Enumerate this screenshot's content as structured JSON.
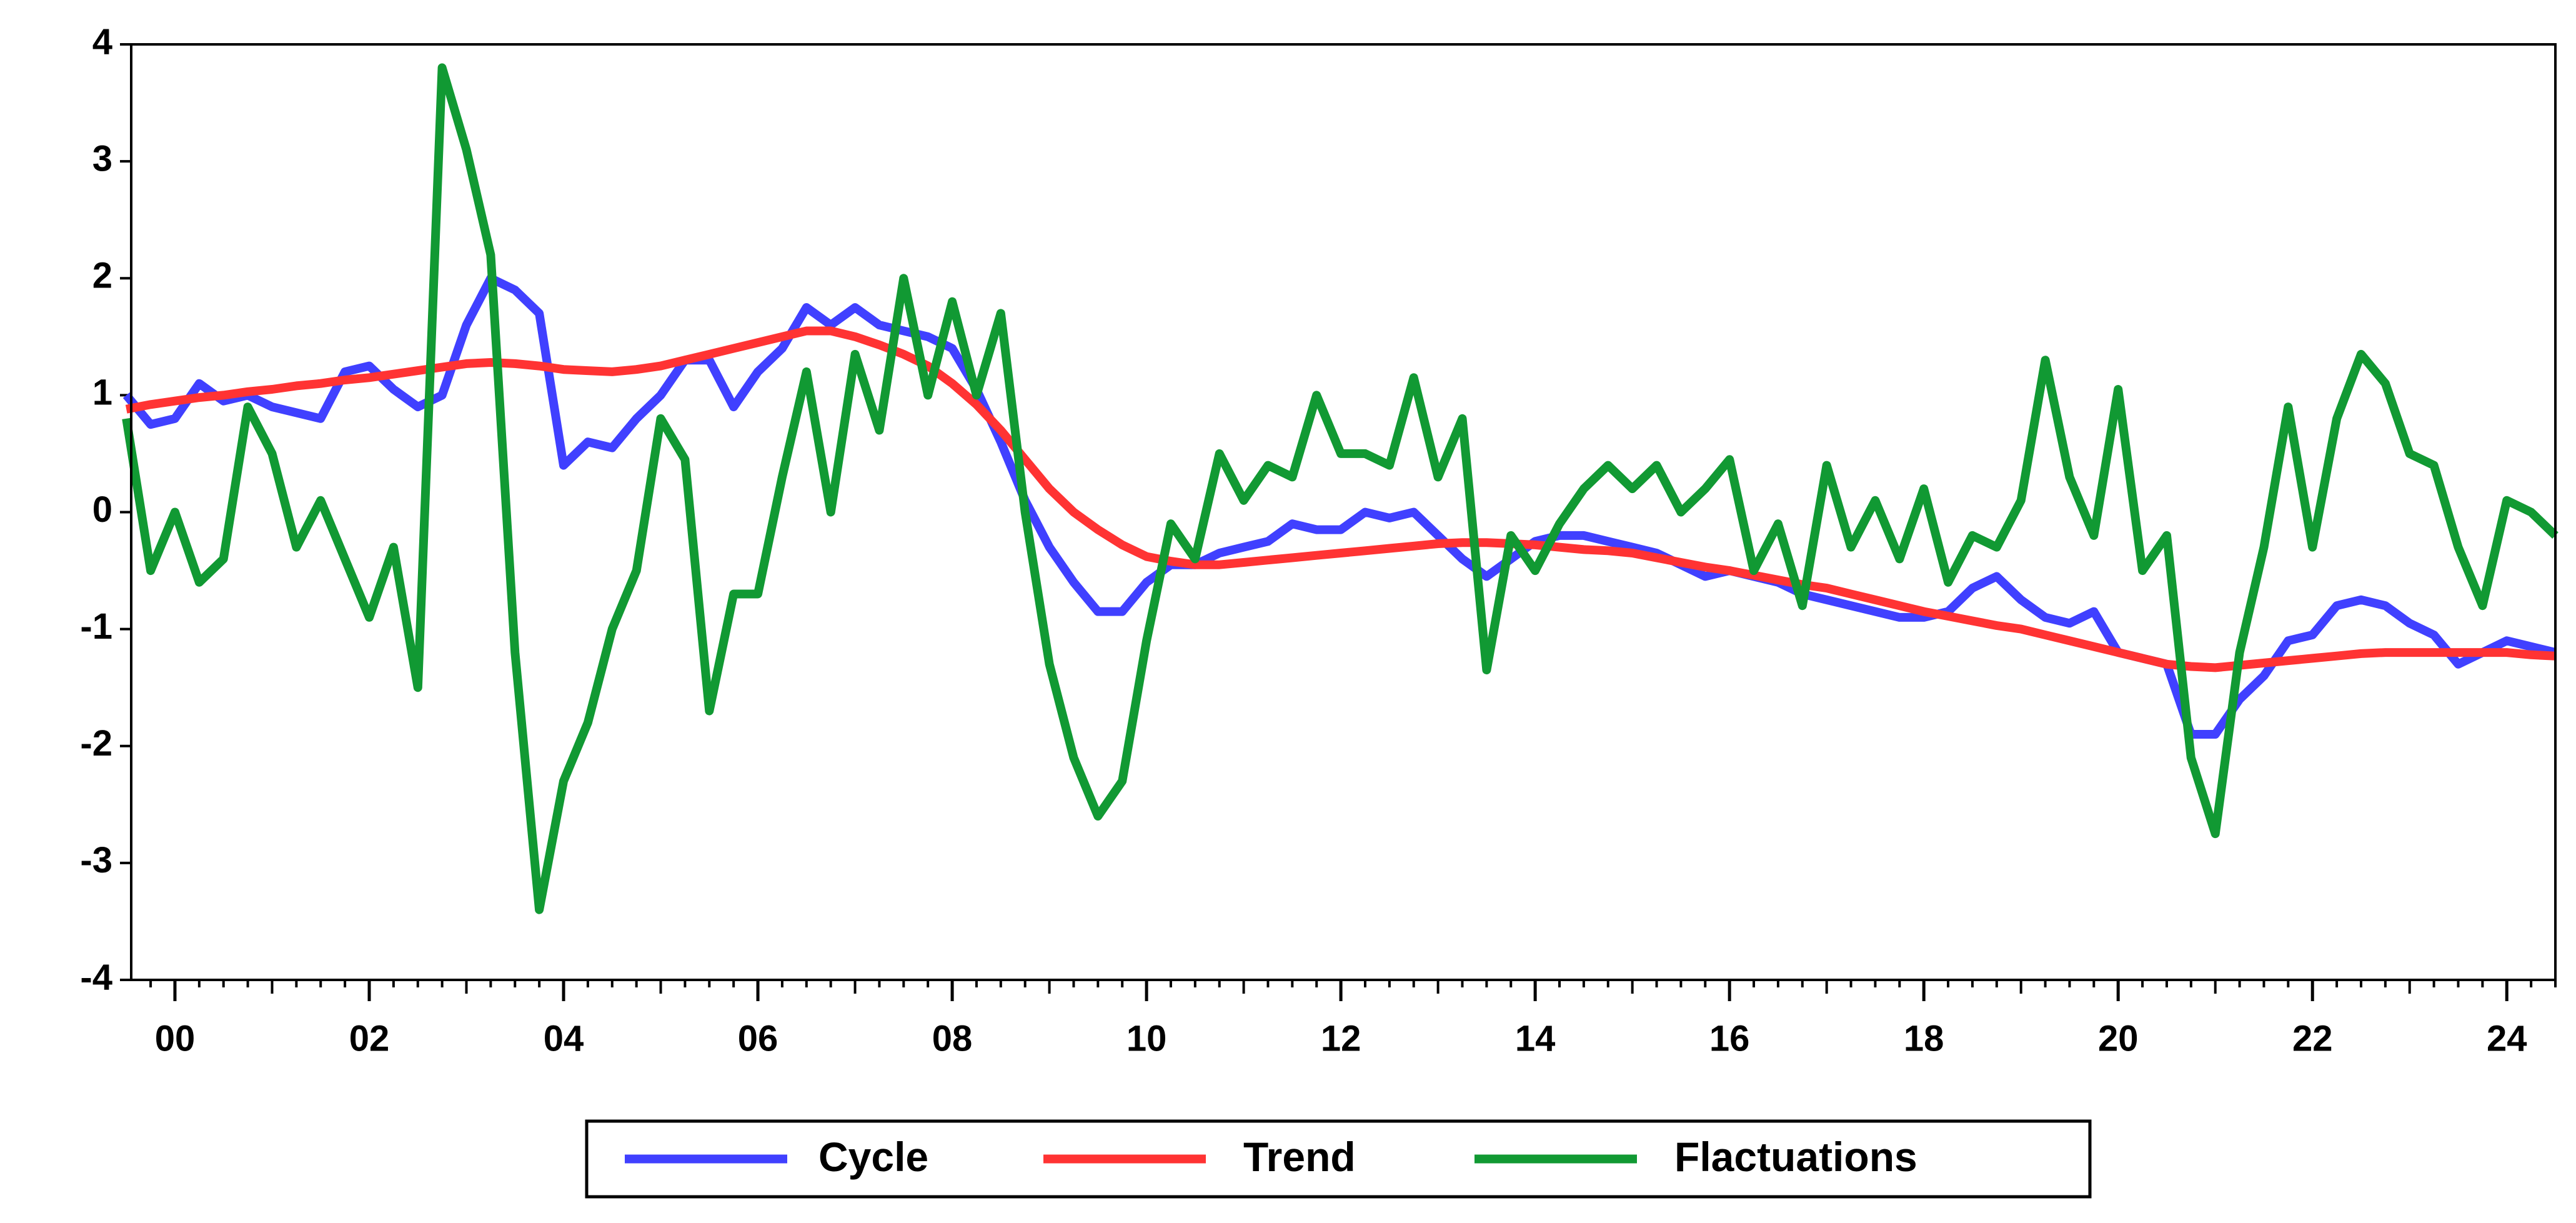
{
  "chart_data": {
    "type": "line",
    "x": [
      1999.5,
      1999.75,
      2000,
      2000.25,
      2000.5,
      2000.75,
      2001,
      2001.25,
      2001.5,
      2001.75,
      2002,
      2002.25,
      2002.5,
      2002.75,
      2003,
      2003.25,
      2003.5,
      2003.75,
      2004,
      2004.25,
      2004.5,
      2004.75,
      2005,
      2005.25,
      2005.5,
      2005.75,
      2006,
      2006.25,
      2006.5,
      2006.75,
      2007,
      2007.25,
      2007.5,
      2007.75,
      2008,
      2008.25,
      2008.5,
      2008.75,
      2009,
      2009.25,
      2009.5,
      2009.75,
      2010,
      2010.25,
      2010.5,
      2010.75,
      2011,
      2011.25,
      2011.5,
      2011.75,
      2012,
      2012.25,
      2012.5,
      2012.75,
      2013,
      2013.25,
      2013.5,
      2013.75,
      2014,
      2014.25,
      2014.5,
      2014.75,
      2015,
      2015.25,
      2015.5,
      2015.75,
      2016,
      2016.25,
      2016.5,
      2016.75,
      2017,
      2017.25,
      2017.5,
      2017.75,
      2018,
      2018.25,
      2018.5,
      2018.75,
      2019,
      2019.25,
      2019.5,
      2019.75,
      2020,
      2020.25,
      2020.5,
      2020.75,
      2021,
      2021.25,
      2021.5,
      2021.75,
      2022,
      2022.25,
      2022.5,
      2022.75,
      2023,
      2023.25,
      2023.5,
      2023.75,
      2024,
      2024.25,
      2024.5
    ],
    "series": [
      {
        "name": "Cycle",
        "color": "#4040ff",
        "values": [
          1.0,
          0.75,
          0.8,
          1.1,
          0.95,
          1.0,
          0.9,
          0.85,
          0.8,
          1.2,
          1.25,
          1.05,
          0.9,
          1.0,
          1.6,
          2.0,
          1.9,
          1.7,
          0.4,
          0.6,
          0.55,
          0.8,
          1.0,
          1.3,
          1.3,
          0.9,
          1.2,
          1.4,
          1.75,
          1.6,
          1.75,
          1.6,
          1.55,
          1.5,
          1.4,
          1.05,
          0.6,
          0.1,
          -0.3,
          -0.6,
          -0.85,
          -0.85,
          -0.6,
          -0.45,
          -0.45,
          -0.35,
          -0.3,
          -0.25,
          -0.1,
          -0.15,
          -0.15,
          0.0,
          -0.05,
          0.0,
          -0.2,
          -0.4,
          -0.55,
          -0.4,
          -0.25,
          -0.2,
          -0.2,
          -0.25,
          -0.3,
          -0.35,
          -0.45,
          -0.55,
          -0.5,
          -0.55,
          -0.6,
          -0.7,
          -0.75,
          -0.8,
          -0.85,
          -0.9,
          -0.9,
          -0.85,
          -0.65,
          -0.55,
          -0.75,
          -0.9,
          -0.95,
          -0.85,
          -1.2,
          -1.25,
          -1.3,
          -1.9,
          -1.9,
          -1.6,
          -1.4,
          -1.1,
          -1.05,
          -0.8,
          -0.75,
          -0.8,
          -0.95,
          -1.05,
          -1.3,
          -1.2,
          -1.1,
          -1.15,
          -1.2
        ]
      },
      {
        "name": "Trend",
        "color": "#ff3333",
        "values": [
          0.88,
          0.92,
          0.95,
          0.98,
          1.0,
          1.03,
          1.05,
          1.08,
          1.1,
          1.13,
          1.15,
          1.18,
          1.21,
          1.24,
          1.27,
          1.28,
          1.27,
          1.25,
          1.22,
          1.21,
          1.2,
          1.22,
          1.25,
          1.3,
          1.35,
          1.4,
          1.45,
          1.5,
          1.55,
          1.55,
          1.5,
          1.43,
          1.35,
          1.25,
          1.1,
          0.92,
          0.7,
          0.45,
          0.2,
          0.0,
          -0.15,
          -0.28,
          -0.38,
          -0.42,
          -0.45,
          -0.45,
          -0.43,
          -0.41,
          -0.39,
          -0.37,
          -0.35,
          -0.33,
          -0.31,
          -0.29,
          -0.27,
          -0.26,
          -0.26,
          -0.27,
          -0.28,
          -0.3,
          -0.32,
          -0.33,
          -0.35,
          -0.39,
          -0.43,
          -0.47,
          -0.5,
          -0.54,
          -0.58,
          -0.62,
          -0.65,
          -0.7,
          -0.75,
          -0.8,
          -0.85,
          -0.89,
          -0.93,
          -0.97,
          -1.0,
          -1.05,
          -1.1,
          -1.15,
          -1.2,
          -1.25,
          -1.3,
          -1.32,
          -1.33,
          -1.31,
          -1.29,
          -1.27,
          -1.25,
          -1.23,
          -1.21,
          -1.2,
          -1.2,
          -1.2,
          -1.2,
          -1.2,
          -1.2,
          -1.22,
          -1.23
        ]
      },
      {
        "name": "Flactuations",
        "color": "#119933",
        "values": [
          0.8,
          -0.5,
          0.0,
          -0.6,
          -0.4,
          0.9,
          0.5,
          -0.3,
          0.1,
          -0.4,
          -0.9,
          -0.3,
          -1.5,
          3.8,
          3.1,
          2.2,
          -1.2,
          -3.4,
          -2.3,
          -1.8,
          -1.0,
          -0.5,
          0.8,
          0.45,
          -1.7,
          -0.7,
          -0.7,
          0.3,
          1.2,
          0.0,
          1.35,
          0.7,
          2.0,
          1.0,
          1.8,
          1.0,
          1.7,
          0.0,
          -1.3,
          -2.1,
          -2.6,
          -2.3,
          -1.1,
          -0.1,
          -0.4,
          0.5,
          0.1,
          0.4,
          0.3,
          1.0,
          0.5,
          0.5,
          0.4,
          1.15,
          0.3,
          0.8,
          -1.35,
          -0.2,
          -0.5,
          -0.1,
          0.2,
          0.4,
          0.2,
          0.4,
          0.0,
          0.2,
          0.45,
          -0.5,
          -0.1,
          -0.8,
          0.4,
          -0.3,
          0.1,
          -0.4,
          0.2,
          -0.6,
          -0.2,
          -0.3,
          0.1,
          1.3,
          0.3,
          -0.2,
          1.05,
          -0.5,
          -0.2,
          -2.1,
          -2.75,
          -1.2,
          -0.3,
          0.9,
          -0.3,
          0.8,
          1.35,
          1.1,
          0.5,
          0.4,
          -0.3,
          -0.8,
          0.1,
          0.0,
          -0.2
        ]
      }
    ],
    "xlim": [
      1999.55,
      2024.5
    ],
    "xticks": [
      {
        "value": 2000,
        "label": "00"
      },
      {
        "value": 2002,
        "label": "02"
      },
      {
        "value": 2004,
        "label": "04"
      },
      {
        "value": 2006,
        "label": "06"
      },
      {
        "value": 2008,
        "label": "08"
      },
      {
        "value": 2010,
        "label": "10"
      },
      {
        "value": 2012,
        "label": "12"
      },
      {
        "value": 2014,
        "label": "14"
      },
      {
        "value": 2016,
        "label": "16"
      },
      {
        "value": 2018,
        "label": "18"
      },
      {
        "value": 2020,
        "label": "20"
      },
      {
        "value": 2022,
        "label": "22"
      },
      {
        "value": 2024,
        "label": "24"
      }
    ],
    "ylim": [
      -4,
      4
    ],
    "yticks": [
      4,
      3,
      2,
      1,
      0,
      -1,
      -2,
      -3,
      -4
    ],
    "legend": "bottom"
  }
}
